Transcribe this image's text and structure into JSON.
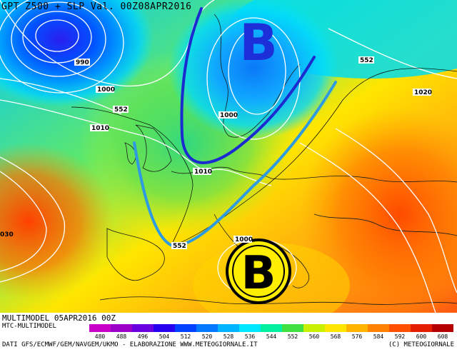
{
  "header": {
    "title": "GPT Z500 + SLP Val. 00Z08APR2016"
  },
  "map_labels": {
    "slp_990": "990",
    "slp_1000_nw": "1000",
    "slp_1010_w": "1010",
    "gpt_552_n": "552",
    "gpt_552_ne": "552",
    "slp_1020": "1020",
    "slp_1000_scand": "1000",
    "slp_1010_uk": "1010",
    "gpt_552_sw": "552",
    "slp_1000_med": "1000",
    "slp_1030_left": "030",
    "low_letter_north": "B",
    "low_letter_med": "B"
  },
  "footer": {
    "model_run": "MULTIMODEL 05APR2016 00Z",
    "product": "MTC-MULTIMODEL",
    "sources": "DATI GFS/ECMWF/GEM/NAVGEM/UKMO - ELABORAZIONE WWW.METEOGIORNALE.IT",
    "copyright": "(C) METEOGIORNALE"
  },
  "scale": {
    "values": [
      "480",
      "488",
      "496",
      "504",
      "512",
      "520",
      "528",
      "536",
      "544",
      "552",
      "560",
      "568",
      "576",
      "584",
      "592",
      "600",
      "608"
    ],
    "colors": [
      "#c800c8",
      "#9a00c8",
      "#6a00e0",
      "#2800f0",
      "#0040ff",
      "#0078ff",
      "#00b4ff",
      "#00e8ff",
      "#00f0a0",
      "#40e040",
      "#c8f000",
      "#ffe600",
      "#ffb400",
      "#ff8200",
      "#ff5000",
      "#e61e00",
      "#b40000"
    ]
  },
  "colors": {
    "blue_trough": "#1a2bd0",
    "lightblue_trough": "#2e9be0",
    "isobar": "#ffffff",
    "coast": "#1a1a1a",
    "low_marker_fill": "#ffee00"
  }
}
